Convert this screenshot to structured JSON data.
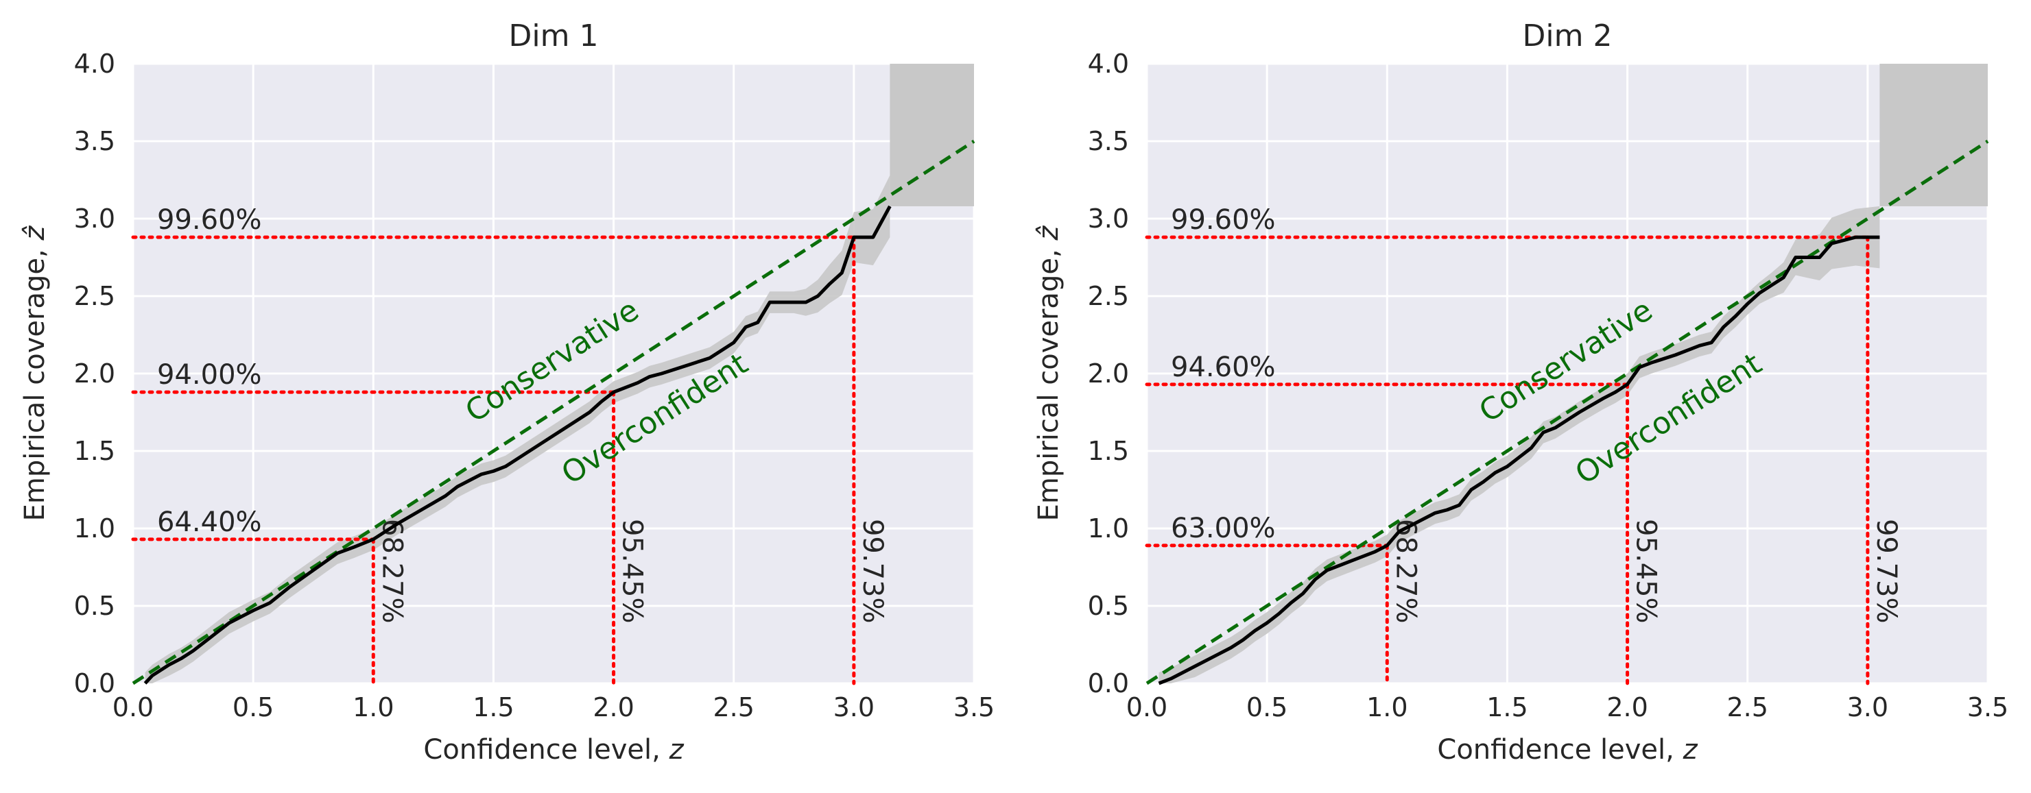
{
  "chart_data": [
    {
      "type": "line",
      "title": "Dim 1",
      "xlabel": "Confidence level, ",
      "xlabel_var": "z",
      "ylabel": "Empirical coverage, ",
      "ylabel_var": "ẑ",
      "xlim": [
        0,
        3.5
      ],
      "ylim": [
        0,
        4.0
      ],
      "xticks": [
        "0.0",
        "0.5",
        "1.0",
        "1.5",
        "2.0",
        "2.5",
        "3.0",
        "3.5"
      ],
      "yticks": [
        "0.0",
        "0.5",
        "1.0",
        "1.5",
        "2.0",
        "2.5",
        "3.0",
        "3.5",
        "4.0"
      ],
      "grid": true,
      "curve": {
        "x": [
          0.05,
          0.08,
          0.15,
          0.2,
          0.25,
          0.3,
          0.35,
          0.4,
          0.5,
          0.57,
          0.65,
          0.75,
          0.85,
          0.92,
          1.0,
          1.1,
          1.2,
          1.3,
          1.35,
          1.45,
          1.5,
          1.55,
          1.6,
          1.7,
          1.8,
          1.9,
          1.95,
          2.0,
          2.1,
          2.15,
          2.2,
          2.3,
          2.4,
          2.45,
          2.5,
          2.55,
          2.6,
          2.65,
          2.7,
          2.75,
          2.8,
          2.85,
          2.9,
          2.95,
          3.0,
          3.08,
          3.15
        ],
        "y": [
          0.0,
          0.05,
          0.12,
          0.16,
          0.21,
          0.27,
          0.33,
          0.39,
          0.47,
          0.52,
          0.62,
          0.73,
          0.84,
          0.88,
          0.93,
          1.03,
          1.12,
          1.21,
          1.27,
          1.35,
          1.37,
          1.4,
          1.45,
          1.55,
          1.65,
          1.75,
          1.82,
          1.88,
          1.94,
          1.98,
          2.0,
          2.05,
          2.1,
          2.15,
          2.2,
          2.3,
          2.33,
          2.46,
          2.46,
          2.46,
          2.46,
          2.5,
          2.58,
          2.65,
          2.88,
          2.88,
          3.08
        ]
      },
      "band_width": 0.07,
      "band_end_width": 0.2,
      "diagonal": {
        "x": [
          0,
          3.5
        ],
        "y": [
          0,
          3.5
        ]
      },
      "uncertain_region": {
        "x": [
          3.15,
          3.5
        ],
        "y": [
          3.08,
          4.0
        ]
      },
      "reference_lines": [
        {
          "z": 1.0,
          "coverage": 0.93,
          "level_label": "68.27%",
          "coverage_label": "64.40%"
        },
        {
          "z": 2.0,
          "coverage": 1.88,
          "level_label": "95.45%",
          "coverage_label": "94.00%"
        },
        {
          "z": 3.0,
          "coverage": 2.88,
          "level_label": "99.73%",
          "coverage_label": "99.60%"
        }
      ],
      "region_labels": {
        "conservative": "Conservative",
        "overconfident": "Overconfident"
      },
      "colors": {
        "curve": "#000000",
        "diagonal": "#0a6e0a",
        "reference": "#ff0000",
        "band": "#c8c8c8",
        "background": "#eaeaf2"
      }
    },
    {
      "type": "line",
      "title": "Dim 2",
      "xlabel": "Confidence level, ",
      "xlabel_var": "z",
      "ylabel": "Empirical coverage, ",
      "ylabel_var": "ẑ",
      "xlim": [
        0,
        3.5
      ],
      "ylim": [
        0,
        4.0
      ],
      "xticks": [
        "0.0",
        "0.5",
        "1.0",
        "1.5",
        "2.0",
        "2.5",
        "3.0",
        "3.5"
      ],
      "yticks": [
        "0.0",
        "0.5",
        "1.0",
        "1.5",
        "2.0",
        "2.5",
        "3.0",
        "3.5",
        "4.0"
      ],
      "grid": true,
      "curve": {
        "x": [
          0.05,
          0.1,
          0.2,
          0.3,
          0.35,
          0.4,
          0.45,
          0.5,
          0.55,
          0.6,
          0.65,
          0.7,
          0.75,
          0.8,
          0.85,
          0.9,
          0.95,
          1.0,
          1.05,
          1.1,
          1.2,
          1.25,
          1.3,
          1.35,
          1.4,
          1.45,
          1.5,
          1.55,
          1.6,
          1.65,
          1.7,
          1.8,
          1.9,
          1.95,
          2.0,
          2.05,
          2.1,
          2.2,
          2.3,
          2.35,
          2.4,
          2.45,
          2.5,
          2.55,
          2.6,
          2.65,
          2.7,
          2.75,
          2.8,
          2.85,
          2.95,
          3.05
        ],
        "y": [
          0.0,
          0.03,
          0.11,
          0.19,
          0.23,
          0.28,
          0.34,
          0.39,
          0.45,
          0.52,
          0.58,
          0.67,
          0.73,
          0.76,
          0.79,
          0.82,
          0.85,
          0.89,
          0.98,
          1.02,
          1.1,
          1.12,
          1.15,
          1.25,
          1.3,
          1.36,
          1.4,
          1.46,
          1.52,
          1.62,
          1.65,
          1.75,
          1.84,
          1.88,
          1.93,
          2.04,
          2.07,
          2.12,
          2.18,
          2.2,
          2.3,
          2.37,
          2.45,
          2.52,
          2.57,
          2.62,
          2.75,
          2.75,
          2.75,
          2.84,
          2.88,
          2.88
        ]
      },
      "band_width": 0.07,
      "band_end_width": 0.2,
      "diagonal": {
        "x": [
          0,
          3.5
        ],
        "y": [
          0,
          3.5
        ]
      },
      "uncertain_region": {
        "x": [
          3.05,
          3.5
        ],
        "y": [
          3.08,
          4.0
        ]
      },
      "reference_lines": [
        {
          "z": 1.0,
          "coverage": 0.89,
          "level_label": "68.27%",
          "coverage_label": "63.00%"
        },
        {
          "z": 2.0,
          "coverage": 1.93,
          "level_label": "95.45%",
          "coverage_label": "94.60%"
        },
        {
          "z": 3.0,
          "coverage": 2.88,
          "level_label": "99.73%",
          "coverage_label": "99.60%"
        }
      ],
      "region_labels": {
        "conservative": "Conservative",
        "overconfident": "Overconfident"
      },
      "colors": {
        "curve": "#000000",
        "diagonal": "#0a6e0a",
        "reference": "#ff0000",
        "band": "#c8c8c8",
        "background": "#eaeaf2"
      }
    }
  ]
}
